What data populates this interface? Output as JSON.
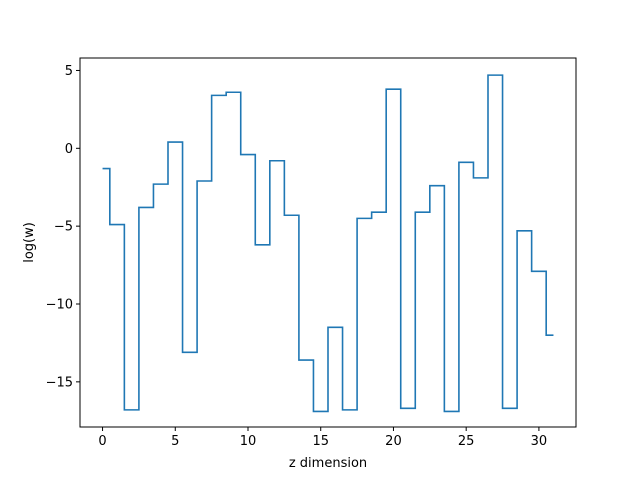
{
  "chart_data": {
    "type": "line",
    "drawstyle": "steps-mid",
    "title": "",
    "xlabel": "z dimension",
    "ylabel": "log(w)",
    "xlim": [
      -1.55,
      32.55
    ],
    "ylim": [
      -17.9,
      5.8
    ],
    "xticks": [
      0,
      5,
      10,
      15,
      20,
      25,
      30
    ],
    "yticks": [
      5,
      0,
      -5,
      -10,
      -15
    ],
    "ytick_labels": [
      "5",
      "0",
      "−5",
      "−10",
      "−15"
    ],
    "grid": false,
    "line_color": "#1f77b4",
    "x": [
      0,
      1,
      2,
      3,
      4,
      5,
      6,
      7,
      8,
      9,
      10,
      11,
      12,
      13,
      14,
      15,
      16,
      17,
      18,
      19,
      20,
      21,
      22,
      23,
      24,
      25,
      26,
      27,
      28,
      29,
      30,
      31
    ],
    "series": [
      {
        "values": [
          -1.3,
          -4.9,
          -16.8,
          -3.8,
          -2.3,
          0.4,
          -13.1,
          -2.1,
          3.4,
          3.6,
          -0.4,
          -6.2,
          -0.8,
          -4.3,
          -13.6,
          -16.9,
          -11.5,
          -16.8,
          -4.5,
          -4.1,
          3.8,
          -16.7,
          -4.1,
          -2.4,
          -16.9,
          -0.9,
          -1.9,
          4.7,
          -16.7,
          -5.3,
          -7.9,
          -12.0
        ]
      }
    ]
  }
}
